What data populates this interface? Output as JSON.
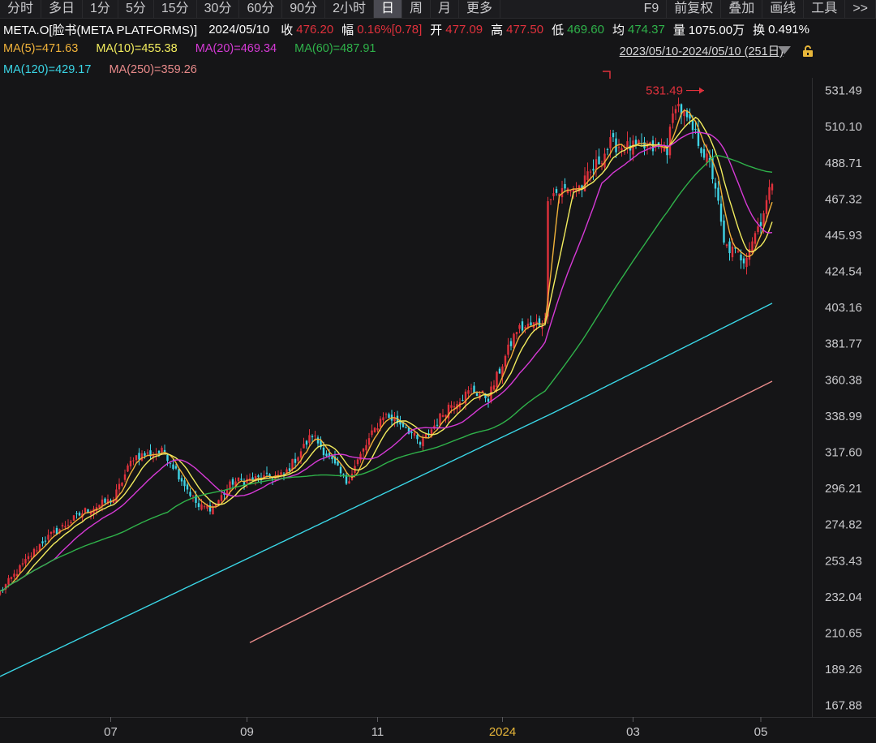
{
  "toolbar": {
    "left": [
      "分时",
      "多日",
      "1分",
      "5分",
      "15分",
      "30分",
      "60分",
      "90分",
      "2小时",
      "日",
      "周",
      "月",
      "更多"
    ],
    "active": "日",
    "right": [
      "F9",
      "前复权",
      "叠加",
      "画线",
      "工具",
      ">>"
    ]
  },
  "info": {
    "symbol": "META.O[脸书(META PLATFORMS)]",
    "date": "2024/05/10",
    "close_label": "收",
    "close": "476.20",
    "change_label": "幅",
    "change": "0.16%[0.78]",
    "open_label": "开",
    "open": "477.09",
    "high_label": "高",
    "high": "477.50",
    "low_label": "低",
    "low": "469.60",
    "avg_label": "均",
    "avg": "474.37",
    "volume_label": "量",
    "volume": "1075.00万",
    "turnover_label": "换",
    "turnover": "0.491%"
  },
  "ma_labels": {
    "ma5": "MA(5)=471.63",
    "ma10": "MA(10)=455.38",
    "ma20": "MA(20)=469.34",
    "ma60": "MA(60)=487.91",
    "ma120": "MA(120)=429.17",
    "ma250": "MA(250)=359.26"
  },
  "range_label": "2023/05/10-2024/05/10 (251日)",
  "colors": {
    "up": "#e0313c",
    "down": "#3fd4e6",
    "ma5": "#f0b23a",
    "ma10": "#f2ec5e",
    "ma20": "#d63ad6",
    "ma60": "#2fb24a",
    "ma120": "#3ad6e6",
    "ma250": "#e88a8a"
  },
  "icons": {
    "range_arrow": "triangle-down-icon",
    "lock": "lock-icon"
  },
  "chart_data": {
    "type": "candlestick",
    "period": "daily",
    "yticks": [
      531.49,
      510.1,
      488.71,
      467.32,
      445.93,
      424.54,
      403.16,
      381.77,
      360.38,
      338.99,
      317.6,
      296.21,
      274.82,
      253.43,
      232.04,
      210.65,
      189.26,
      167.88
    ],
    "xticks": [
      "07",
      "09",
      "11",
      "2024",
      "03",
      "05"
    ],
    "y_range": [
      161,
      538
    ],
    "n_days": 251,
    "max_marker": {
      "value": 531.49,
      "label": "531.49"
    },
    "anchors": [
      {
        "day": 0,
        "price": 235
      },
      {
        "day": 15,
        "price": 265
      },
      {
        "day": 30,
        "price": 283
      },
      {
        "day": 40,
        "price": 290
      },
      {
        "day": 47,
        "price": 315
      },
      {
        "day": 58,
        "price": 318
      },
      {
        "day": 70,
        "price": 285
      },
      {
        "day": 75,
        "price": 285
      },
      {
        "day": 82,
        "price": 300
      },
      {
        "day": 100,
        "price": 304
      },
      {
        "day": 110,
        "price": 328
      },
      {
        "day": 122,
        "price": 300
      },
      {
        "day": 130,
        "price": 325
      },
      {
        "day": 135,
        "price": 340
      },
      {
        "day": 143,
        "price": 333
      },
      {
        "day": 148,
        "price": 322
      },
      {
        "day": 158,
        "price": 345
      },
      {
        "day": 166,
        "price": 354
      },
      {
        "day": 172,
        "price": 350
      },
      {
        "day": 182,
        "price": 390
      },
      {
        "day": 192,
        "price": 395
      },
      {
        "day": 193,
        "price": 470
      },
      {
        "day": 205,
        "price": 475
      },
      {
        "day": 215,
        "price": 500
      },
      {
        "day": 220,
        "price": 498
      },
      {
        "day": 235,
        "price": 497
      },
      {
        "day": 238,
        "price": 525
      },
      {
        "day": 245,
        "price": 505
      },
      {
        "day": 250,
        "price": 487
      },
      {
        "day": 252,
        "price": 475
      },
      {
        "day": 255,
        "price": 440
      },
      {
        "day": 262,
        "price": 432
      },
      {
        "day": 268,
        "price": 455
      },
      {
        "day": 272,
        "price": 476.2
      }
    ],
    "ma_last": {
      "ma5": 471.63,
      "ma10": 455.38,
      "ma20": 469.34,
      "ma60": 487.91,
      "ma120": 429.17,
      "ma250": 359.26
    }
  }
}
